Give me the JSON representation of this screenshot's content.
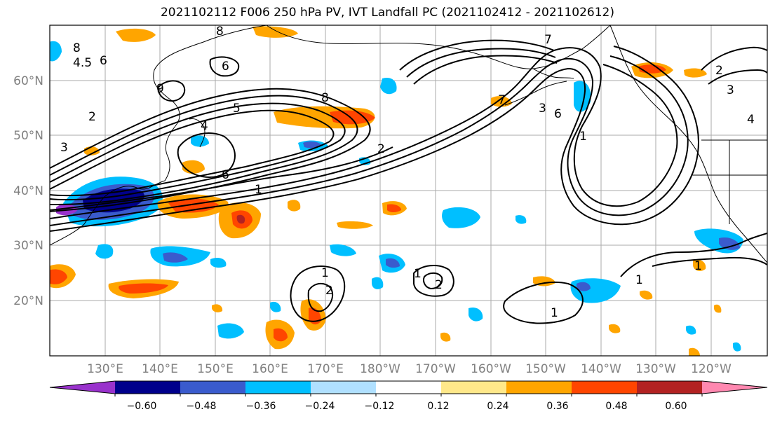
{
  "title": "2021102112 F006 250 hPa PV, IVT Landfall PC (2021102412 - 2021102612)",
  "lat_labels": [
    "60°N",
    "50°N",
    "40°N",
    "30°N",
    "20°N"
  ],
  "lon_labels": [
    "130°E",
    "140°E",
    "150°E",
    "160°E",
    "170°E",
    "180°W",
    "170°W",
    "160°W",
    "150°W",
    "140°W",
    "130°W",
    "120°W"
  ],
  "colorbar": {
    "colors": [
      "#9932cc",
      "#00008b",
      "#3a5bcd",
      "#00bfff",
      "#b0e0ff",
      "#ffffff",
      "#ffe88a",
      "#ffa500",
      "#ff4500",
      "#b22222",
      "#ff88b0"
    ],
    "tick_labels": [
      "−0.60",
      "−0.48",
      "−0.36",
      "−0.24",
      "−0.12",
      "0.12",
      "0.24",
      "0.36",
      "0.48",
      "0.60"
    ]
  },
  "contour_labels": [
    "8",
    "4.5",
    "6",
    "6",
    "9",
    "2",
    "3",
    "5",
    "4",
    "6",
    "8",
    "8",
    "2",
    "1",
    "1",
    "2",
    "1",
    "2",
    "7",
    "3",
    "1",
    "1",
    "1",
    "1",
    "2",
    "3",
    "6",
    "7",
    "4"
  ]
}
